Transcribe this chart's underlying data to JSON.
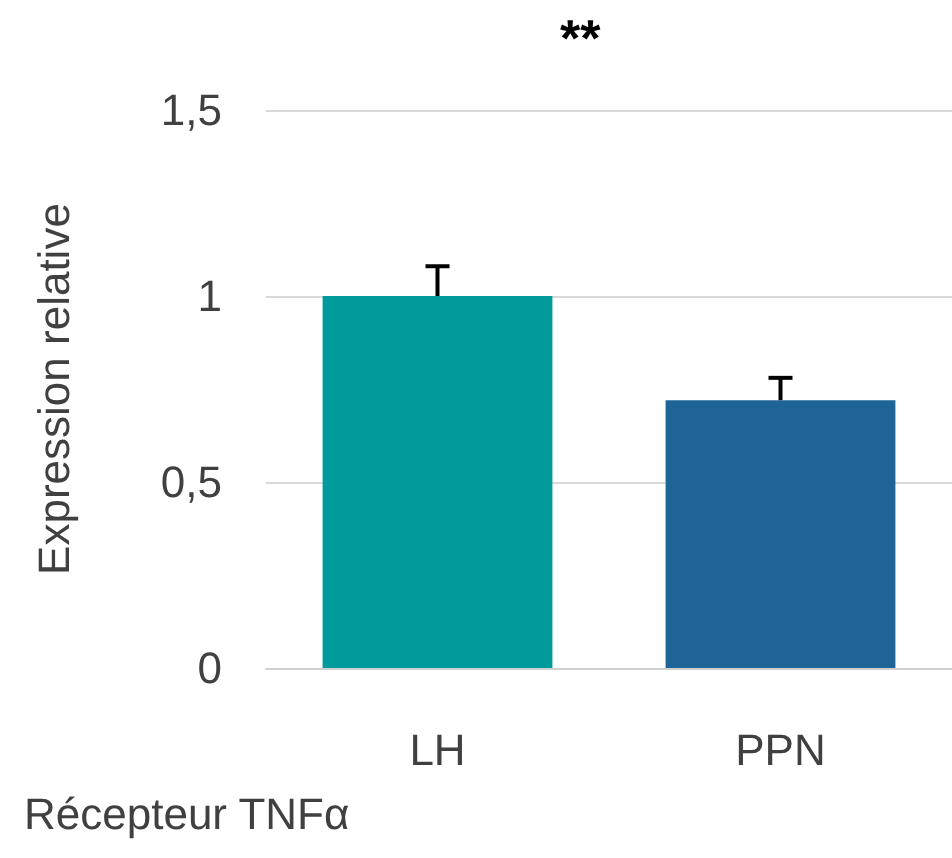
{
  "chart_data": {
    "type": "bar",
    "ylabel": "Expression relative",
    "xlabel": "Récepteur TNFα",
    "annotations": [
      "**"
    ],
    "categories": [
      "LH",
      "PPN"
    ],
    "values": [
      1.0,
      0.72
    ],
    "colors": [
      "#009b9a",
      "#1f6497"
    ],
    "errors": [
      [
        1.0,
        1.08
      ],
      [
        0.72,
        0.78
      ]
    ],
    "ylim": [
      0,
      1.5
    ],
    "yticks": [
      0,
      {
        "value": 0.5,
        "label": "0,5"
      },
      1,
      {
        "value": 1.5,
        "label": "1,5"
      }
    ],
    "grid": "y",
    "legend": false
  }
}
